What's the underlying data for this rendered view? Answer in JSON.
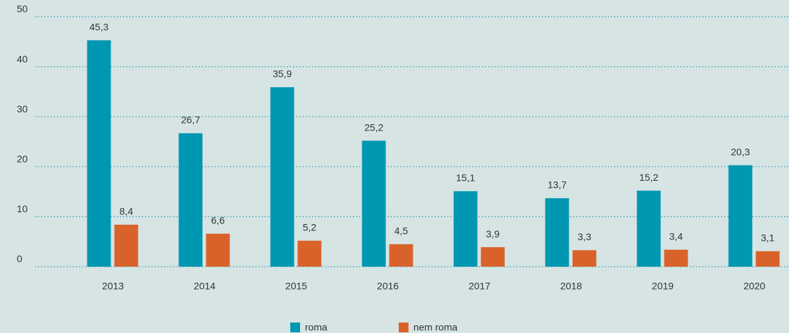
{
  "chart_data": {
    "type": "bar",
    "categories": [
      "2013",
      "2014",
      "2015",
      "2016",
      "2017",
      "2018",
      "2019",
      "2020"
    ],
    "series": [
      {
        "name": "roma",
        "color": "#0097b2",
        "values": [
          45.3,
          26.7,
          35.9,
          25.2,
          15.1,
          13.7,
          15.2,
          20.3
        ],
        "value_labels": [
          "45,3",
          "26,7",
          "35,9",
          "25,2",
          "15,1",
          "13,7",
          "15,2",
          "20,3"
        ]
      },
      {
        "name": "nem roma",
        "color": "#d9622b",
        "values": [
          8.4,
          6.6,
          5.2,
          4.5,
          3.9,
          3.3,
          3.4,
          3.1
        ],
        "value_labels": [
          "8,4",
          "6,6",
          "5,2",
          "4,5",
          "3,9",
          "3,3",
          "3,4",
          "3,1"
        ]
      }
    ],
    "ylim": [
      0,
      50
    ],
    "yticks": [
      0,
      10,
      20,
      30,
      40,
      50
    ],
    "grid": true,
    "legend": "bottom"
  }
}
